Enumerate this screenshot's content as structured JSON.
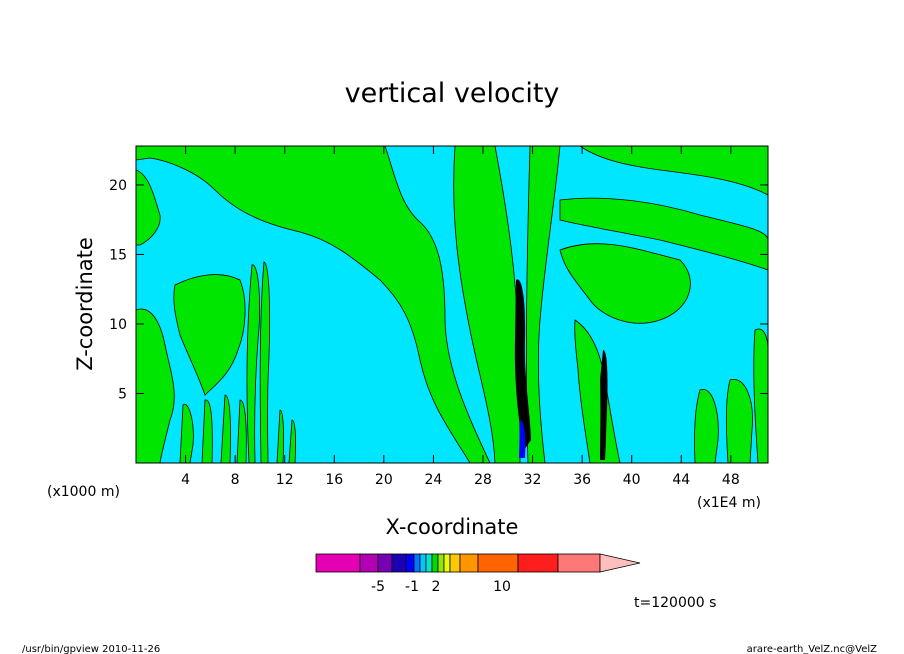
{
  "chart_data": {
    "type": "heatmap",
    "title": "vertical velocity",
    "xlabel": "X-coordinate",
    "ylabel": "Z-coordinate",
    "x_scale_note": "(x1000 m)",
    "y_scale_note": "(x1E4 m)",
    "x_ticks": [
      "4",
      "8",
      "12",
      "16",
      "20",
      "24",
      "28",
      "32",
      "36",
      "40",
      "44",
      "48"
    ],
    "y_ticks": [
      "5",
      "10",
      "15",
      "20"
    ],
    "xlim": [
      0,
      51
    ],
    "ylim": [
      0,
      22.8
    ],
    "colorbar": {
      "labels": [
        "-5",
        "-1",
        "2",
        "10"
      ],
      "colors": [
        "#e600b4",
        "#b400b4",
        "#7800b4",
        "#1e00b4",
        "#0000ff",
        "#0078ff",
        "#00c8ff",
        "#00e6c8",
        "#00dc00",
        "#96e600",
        "#e6ff00",
        "#ffc800",
        "#ff9600",
        "#ff6400",
        "#ff1e1e",
        "#ff7878",
        "#ffbebe"
      ]
    },
    "fill_colors": {
      "background": "#00e6ff",
      "positive": "#00e600",
      "strong_positive": "#000000",
      "strong_negative": "#0000ff"
    },
    "time_label": "t=120000 s",
    "footer_left": "/usr/bin/gpview  2010-11-26",
    "footer_right": "arare-earth_VelZ.nc@VelZ"
  }
}
